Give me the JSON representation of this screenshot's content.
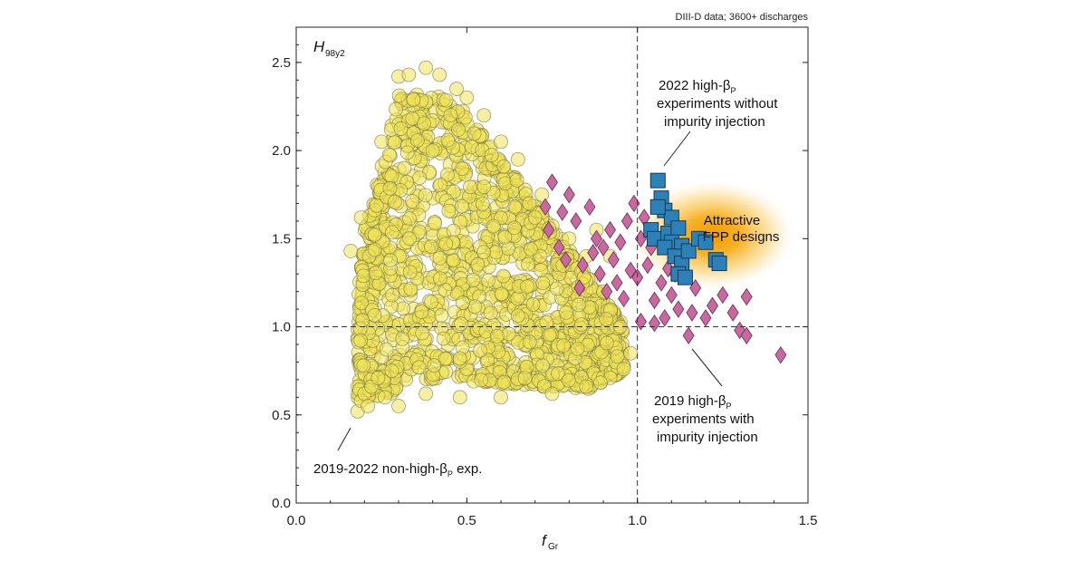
{
  "chart_data": {
    "type": "scatter",
    "source_note": "DIII-D data; 3600+ discharges",
    "xlabel": {
      "main": "f",
      "sub": "Gr"
    },
    "ylabel": {
      "main": "H",
      "sub": "98y2"
    },
    "xlim": [
      0.0,
      1.5
    ],
    "ylim": [
      0.0,
      2.7
    ],
    "x_ticks": [
      "0.0",
      "0.5",
      "1.0",
      "1.5"
    ],
    "y_ticks": [
      "0.0",
      "0.5",
      "1.0",
      "1.5",
      "2.0",
      "2.5"
    ],
    "reference_lines": {
      "x": 1.0,
      "y": 1.0
    },
    "attractive_region": {
      "center_x": 1.22,
      "center_y": 1.52,
      "label_lines": [
        "Attractive",
        "FPP designs"
      ],
      "color": "#f5a000"
    },
    "series": [
      {
        "name": "2019-2022 non-high-βp exp.",
        "marker": "circle",
        "color": "#efe35a",
        "cloud": {
          "x_range": [
            0.17,
            0.97
          ],
          "y_range": [
            0.5,
            2.5
          ],
          "density": "dense, ~3000+ points"
        },
        "points": [
          [
            0.18,
            0.52
          ],
          [
            0.19,
            0.58
          ],
          [
            0.2,
            0.62
          ],
          [
            0.22,
            0.66
          ],
          [
            0.24,
            0.71
          ],
          [
            0.21,
            0.55
          ],
          [
            0.26,
            0.6
          ],
          [
            0.28,
            0.75
          ],
          [
            0.16,
            1.43
          ],
          [
            0.19,
            1.62
          ],
          [
            0.25,
            2.05
          ],
          [
            0.3,
            2.42
          ],
          [
            0.33,
            2.43
          ],
          [
            0.38,
            2.47
          ],
          [
            0.42,
            2.43
          ],
          [
            0.47,
            2.35
          ],
          [
            0.55,
            2.2
          ],
          [
            0.6,
            2.05
          ],
          [
            0.65,
            1.95
          ],
          [
            0.72,
            1.75
          ],
          [
            0.8,
            1.5
          ],
          [
            0.85,
            1.4
          ],
          [
            0.9,
            1.2
          ],
          [
            0.95,
            1.0
          ],
          [
            0.98,
            0.85
          ],
          [
            0.96,
            0.76
          ],
          [
            0.85,
            0.66
          ],
          [
            0.75,
            0.62
          ],
          [
            0.6,
            0.6
          ],
          [
            0.48,
            0.6
          ],
          [
            0.38,
            0.62
          ],
          [
            0.3,
            0.55
          ],
          [
            0.92,
            1.4
          ],
          [
            0.88,
            1.55
          ],
          [
            0.7,
            1.62
          ],
          [
            0.5,
            2.3
          ]
        ]
      },
      {
        "name": "2019 high-βp experiments with impurity injection",
        "marker": "diamond",
        "color": "#c96a9e",
        "points": [
          [
            0.73,
            1.68
          ],
          [
            0.75,
            1.82
          ],
          [
            0.74,
            1.55
          ],
          [
            0.78,
            1.65
          ],
          [
            0.8,
            1.75
          ],
          [
            0.77,
            1.45
          ],
          [
            0.82,
            1.6
          ],
          [
            0.84,
            1.35
          ],
          [
            0.86,
            1.68
          ],
          [
            0.88,
            1.5
          ],
          [
            0.89,
            1.3
          ],
          [
            0.9,
            1.45
          ],
          [
            0.91,
            1.2
          ],
          [
            0.92,
            1.55
          ],
          [
            0.93,
            1.38
          ],
          [
            0.94,
            1.25
          ],
          [
            0.95,
            1.48
          ],
          [
            0.96,
            1.16
          ],
          [
            0.97,
            1.6
          ],
          [
            0.98,
            1.32
          ],
          [
            0.99,
            1.7
          ],
          [
            1.0,
            1.28
          ],
          [
            1.01,
            1.5
          ],
          [
            1.02,
            1.62
          ],
          [
            1.03,
            1.35
          ],
          [
            1.04,
            1.45
          ],
          [
            1.05,
            1.15
          ],
          [
            1.07,
            1.25
          ],
          [
            1.08,
            1.05
          ],
          [
            1.09,
            1.33
          ],
          [
            1.1,
            1.18
          ],
          [
            1.11,
            1.3
          ],
          [
            1.12,
            1.1
          ],
          [
            1.13,
            1.42
          ],
          [
            1.15,
            0.95
          ],
          [
            1.16,
            1.08
          ],
          [
            1.17,
            1.22
          ],
          [
            1.2,
            1.05
          ],
          [
            1.22,
            1.12
          ],
          [
            1.25,
            1.18
          ],
          [
            1.28,
            1.08
          ],
          [
            1.3,
            0.98
          ],
          [
            1.32,
            0.95
          ],
          [
            1.32,
            1.17
          ],
          [
            1.42,
            0.84
          ],
          [
            1.01,
            1.03
          ],
          [
            1.05,
            1.02
          ],
          [
            0.87,
            1.42
          ],
          [
            0.83,
            1.22
          ],
          [
            0.79,
            1.38
          ]
        ]
      },
      {
        "name": "2022 high-βp experiments without impurity injection",
        "marker": "square",
        "color": "#2c82b8",
        "points": [
          [
            1.06,
            1.83
          ],
          [
            1.07,
            1.73
          ],
          [
            1.08,
            1.66
          ],
          [
            1.1,
            1.62
          ],
          [
            1.04,
            1.55
          ],
          [
            1.05,
            1.5
          ],
          [
            1.09,
            1.53
          ],
          [
            1.12,
            1.56
          ],
          [
            1.1,
            1.48
          ],
          [
            1.13,
            1.46
          ],
          [
            1.08,
            1.45
          ],
          [
            1.11,
            1.4
          ],
          [
            1.13,
            1.36
          ],
          [
            1.15,
            1.43
          ],
          [
            1.18,
            1.5
          ],
          [
            1.2,
            1.48
          ],
          [
            1.23,
            1.38
          ],
          [
            1.24,
            1.36
          ],
          [
            1.06,
            1.68
          ],
          [
            1.12,
            1.3
          ],
          [
            1.14,
            1.28
          ]
        ]
      }
    ],
    "annotations": [
      {
        "lines": [
          "2022 high-β",
          "experiments without",
          "impurity injection"
        ],
        "sub_on_first": "P",
        "target_series": 2
      },
      {
        "lines": [
          "2019 high-β",
          "experiments with",
          "impurity injection"
        ],
        "sub_on_first": "P",
        "target_series": 1
      },
      {
        "lines": [
          "2019-2022 non-high-β",
          " exp."
        ],
        "sub_on_first": "P",
        "target_series": 0
      }
    ]
  }
}
